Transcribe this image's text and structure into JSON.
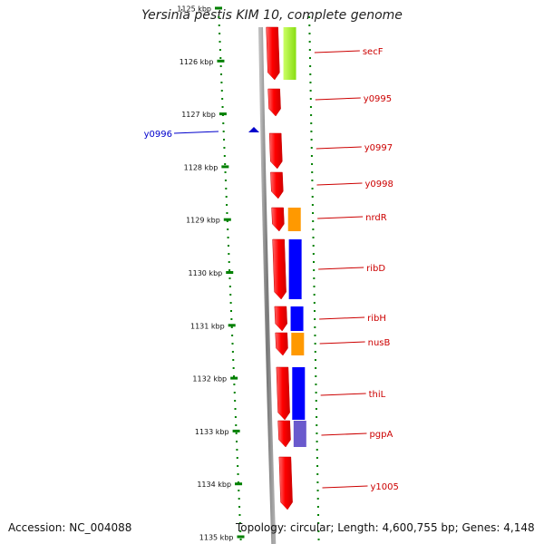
{
  "title": "Yersinia pestis KIM 10, complete genome",
  "footer": {
    "accession": "Accession: NC_004088",
    "topology": "Topology: circular; Length: 4,600,755 bp; Genes: 4,148"
  },
  "colors": {
    "forward_gene": "#ff0000",
    "label_text": "#cc0000",
    "reverse_label": "#0000cc",
    "tick": "#008000",
    "backbone": "#888888",
    "cog_green": "#99ee22",
    "cog_orange": "#ff9900",
    "cog_blue": "#0000ff",
    "cog_purple": "#6a5acd"
  },
  "ruler_ticks": [
    {
      "label": "1125 kbp"
    },
    {
      "label": "1126 kbp"
    },
    {
      "label": "1127 kbp"
    },
    {
      "label": "1128 kbp"
    },
    {
      "label": "1129 kbp"
    },
    {
      "label": "1130 kbp"
    },
    {
      "label": "1131 kbp"
    },
    {
      "label": "1132 kbp"
    },
    {
      "label": "1133 kbp"
    },
    {
      "label": "1134 kbp"
    },
    {
      "label": "1135 kbp"
    }
  ],
  "genes": [
    {
      "name": "secF",
      "strand": "+",
      "cog": "green"
    },
    {
      "name": "y0995",
      "strand": "+"
    },
    {
      "name": "y0996",
      "strand": "-"
    },
    {
      "name": "y0997",
      "strand": "+"
    },
    {
      "name": "y0998",
      "strand": "+"
    },
    {
      "name": "nrdR",
      "strand": "+",
      "cog": "orange"
    },
    {
      "name": "ribD",
      "strand": "+",
      "cog": "blue"
    },
    {
      "name": "ribH",
      "strand": "+",
      "cog": "blue"
    },
    {
      "name": "nusB",
      "strand": "+",
      "cog": "orange"
    },
    {
      "name": "thiL",
      "strand": "+",
      "cog": "blue"
    },
    {
      "name": "pgpA",
      "strand": "+",
      "cog": "purple"
    },
    {
      "name": "y1005",
      "strand": "+"
    }
  ]
}
